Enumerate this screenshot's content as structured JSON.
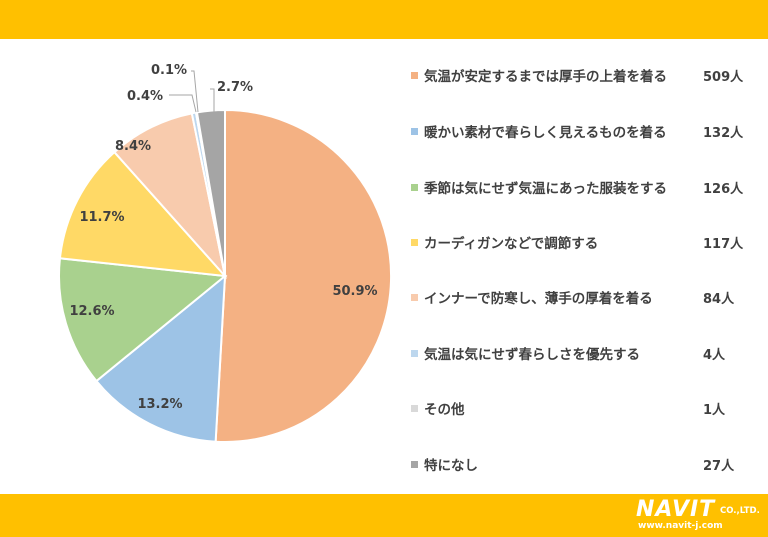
{
  "chart_data": {
    "type": "pie",
    "title": "",
    "categories": [
      "気温が安定するまでは厚手の上着を着る",
      "暖かい素材で春らしく見えるものを着る",
      "季節は気にせず気温にあった服装をする",
      "カーディガンなどで調節する",
      "インナーで防寒し、薄手の厚着を着る",
      "気温は気にせず春らしさを優先する",
      "その他",
      "特になし"
    ],
    "values": [
      50.9,
      13.2,
      12.6,
      11.7,
      8.4,
      0.4,
      0.1,
      2.7
    ],
    "counts": [
      "509人",
      "132人",
      "126人",
      "117人",
      "84人",
      "4人",
      "1人",
      "27人"
    ],
    "labels": [
      "50.9%",
      "13.2%",
      "12.6%",
      "11.7%",
      "8.4%",
      "0.4%",
      "0.1%",
      "2.7%"
    ],
    "colors": [
      "#F4B183",
      "#9DC3E6",
      "#A9D18E",
      "#FFD966",
      "#F8CBAD",
      "#BDD7EE",
      "#D9D9D9",
      "#A5A5A5"
    ],
    "legend_position": "right",
    "grid": false
  },
  "logo": {
    "name": "NAVIT",
    "suffix": "CO.,LTD.",
    "url": "www.navit-j.com"
  },
  "colors": {
    "band": "#FFC000",
    "text": "#404040"
  }
}
